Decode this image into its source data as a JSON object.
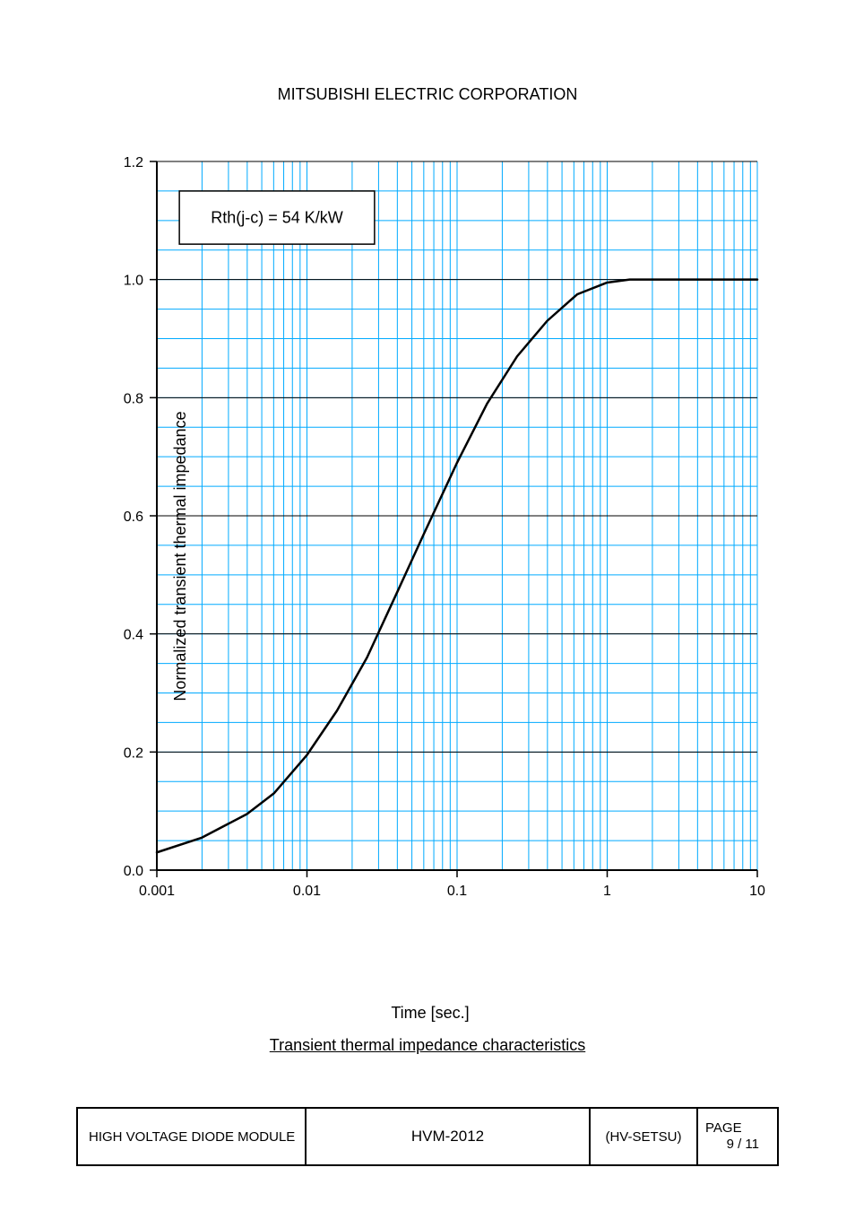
{
  "header": {
    "company": "MITSUBISHI ELECTRIC CORPORATION"
  },
  "chart": {
    "type": "line",
    "annotation": "Rth(j-c) = 54 K/kW",
    "ylabel": "Normalized transient thermal impedance",
    "xlabel": "Time [sec.]",
    "x_scale": "log",
    "x_ticks": [
      "0.001",
      "0.01",
      "0.1",
      "1",
      "10"
    ],
    "y_ticks": [
      "0.0",
      "0.2",
      "0.4",
      "0.6",
      "0.8",
      "1.0",
      "1.2"
    ],
    "ylim": [
      0,
      1.2
    ],
    "xlim": [
      0.001,
      10
    ],
    "grid_color": "#00aaff",
    "axis_color": "#000000",
    "curve_color": "#000000",
    "background_color": "#ffffff",
    "line_width_curve": 2.5,
    "line_width_grid_major": 1,
    "line_width_grid_minor": 1,
    "tick_fontsize": 16,
    "label_fontsize": 18,
    "annotation_box": {
      "border_color": "#000000",
      "text_color": "#000000",
      "fontsize": 18
    },
    "curve_points_log10x_y": [
      [
        -3.0,
        0.03
      ],
      [
        -2.7,
        0.055
      ],
      [
        -2.4,
        0.095
      ],
      [
        -2.22,
        0.13
      ],
      [
        -2.0,
        0.195
      ],
      [
        -1.8,
        0.27
      ],
      [
        -1.6,
        0.36
      ],
      [
        -1.4,
        0.47
      ],
      [
        -1.22,
        0.57
      ],
      [
        -1.0,
        0.69
      ],
      [
        -0.8,
        0.79
      ],
      [
        -0.6,
        0.87
      ],
      [
        -0.4,
        0.93
      ],
      [
        -0.2,
        0.975
      ],
      [
        0.0,
        0.995
      ],
      [
        0.15,
        1.0
      ],
      [
        1.0,
        1.0
      ]
    ]
  },
  "caption": "Transient thermal impedance characteristics",
  "footer": {
    "col1": "HIGH VOLTAGE DIODE MODULE",
    "col2": "HVM-2012",
    "col3": "(HV-SETSU)",
    "col4_label": "PAGE",
    "col4_value": "9 / 11"
  }
}
